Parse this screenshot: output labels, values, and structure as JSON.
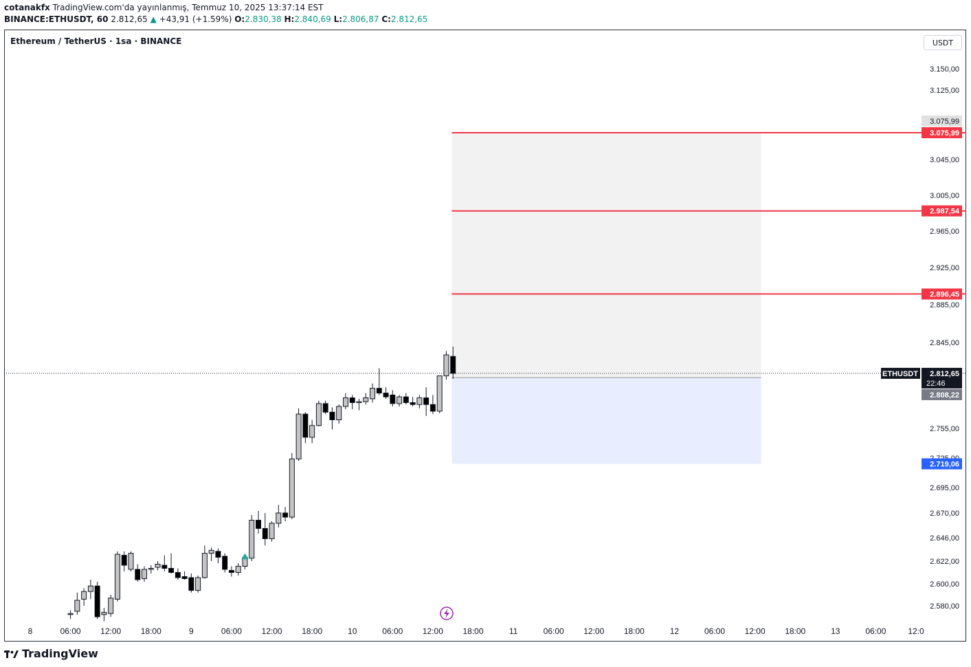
{
  "header": {
    "author": "cotanakfx",
    "published_text": "TradingView.com'da yayınlanmış, Temmuz 10, 2025 13:37:14 EST",
    "symbol": "BINANCE:ETHUSDT, 60",
    "last": "2.812,65",
    "change": "+43,91 (+1.59%)",
    "o_label": "O:",
    "o": "2.830,38",
    "h_label": "H:",
    "h": "2.840,69",
    "l_label": "L:",
    "l": "2.806,87",
    "c_label": "C:",
    "c": "2.812,65"
  },
  "legend_title": "Ethereum / TetherUS · 1sa · BINANCE",
  "currency_button": "USDT",
  "footer": {
    "brand": "TradingView"
  },
  "colors": {
    "bull_body": "#c4c4c4",
    "bear_body": "#000000",
    "target_line": "#f23645",
    "entry_label": "#2962ff",
    "marker": "#26a69a",
    "flash_icon": "#9c27b0"
  },
  "chart_data": {
    "type": "candlestick",
    "title": "Ethereum / TetherUS · 1sa · BINANCE",
    "series_name": "ETHUSDT",
    "y_axis_labels": [
      "3.150,00",
      "3.125,00",
      "3.075,99",
      "3.045,00",
      "3.005,00",
      "2.965,00",
      "2.925,00",
      "2.885,00",
      "2.845,00",
      "2.755,00",
      "2.725,00",
      "2.695,00",
      "2.670,00",
      "2.646,00",
      "2.622,00",
      "2.600,00",
      "2.580,00"
    ],
    "y_ticks": [
      3150,
      3125,
      3075.99,
      3045,
      3005,
      2965,
      2925,
      2885,
      2845,
      2755,
      2725,
      2695,
      2670,
      2646,
      2622,
      2600,
      2580
    ],
    "x_axis_labels": [
      "8",
      "06:00",
      "12:00",
      "18:00",
      "9",
      "06:00",
      "12:00",
      "18:00",
      "10",
      "06:00",
      "12:00",
      "18:00",
      "11",
      "06:00",
      "12:00",
      "18:00",
      "12",
      "06:00",
      "12:00",
      "18:00",
      "13",
      "06:00",
      "12:0"
    ],
    "x_hours": [
      0,
      6,
      12,
      18,
      24,
      30,
      36,
      42,
      48,
      54,
      60,
      66,
      72,
      78,
      84,
      90,
      96,
      102,
      108,
      114,
      120,
      126,
      132
    ],
    "candles": [
      {
        "t": 6,
        "o": 2572,
        "h": 2576,
        "l": 2568,
        "c": 2573
      },
      {
        "t": 7,
        "o": 2575,
        "h": 2592,
        "l": 2572,
        "c": 2585
      },
      {
        "t": 8,
        "o": 2586,
        "h": 2596,
        "l": 2580,
        "c": 2593
      },
      {
        "t": 9,
        "o": 2593,
        "h": 2604,
        "l": 2586,
        "c": 2598
      },
      {
        "t": 10,
        "o": 2598,
        "h": 2602,
        "l": 2568,
        "c": 2570
      },
      {
        "t": 11,
        "o": 2572,
        "h": 2578,
        "l": 2566,
        "c": 2574
      },
      {
        "t": 12,
        "o": 2573,
        "h": 2590,
        "l": 2570,
        "c": 2587
      },
      {
        "t": 13,
        "o": 2586,
        "h": 2632,
        "l": 2584,
        "c": 2629
      },
      {
        "t": 14,
        "o": 2628,
        "h": 2632,
        "l": 2612,
        "c": 2618
      },
      {
        "t": 15,
        "o": 2614,
        "h": 2632,
        "l": 2612,
        "c": 2630
      },
      {
        "t": 16,
        "o": 2614,
        "h": 2619,
        "l": 2602,
        "c": 2604
      },
      {
        "t": 17,
        "o": 2605,
        "h": 2617,
        "l": 2602,
        "c": 2614
      },
      {
        "t": 18,
        "o": 2614,
        "h": 2618,
        "l": 2610,
        "c": 2615
      },
      {
        "t": 19,
        "o": 2616,
        "h": 2622,
        "l": 2613,
        "c": 2619
      },
      {
        "t": 20,
        "o": 2618,
        "h": 2628,
        "l": 2612,
        "c": 2615
      },
      {
        "t": 21,
        "o": 2615,
        "h": 2630,
        "l": 2610,
        "c": 2611
      },
      {
        "t": 22,
        "o": 2611,
        "h": 2615,
        "l": 2604,
        "c": 2606
      },
      {
        "t": 23,
        "o": 2607,
        "h": 2612,
        "l": 2604,
        "c": 2605
      },
      {
        "t": 24,
        "o": 2606,
        "h": 2610,
        "l": 2592,
        "c": 2594
      },
      {
        "t": 25,
        "o": 2594,
        "h": 2608,
        "l": 2592,
        "c": 2606
      },
      {
        "t": 26,
        "o": 2606,
        "h": 2638,
        "l": 2605,
        "c": 2630
      },
      {
        "t": 27,
        "o": 2630,
        "h": 2636,
        "l": 2622,
        "c": 2633
      },
      {
        "t": 28,
        "o": 2632,
        "h": 2635,
        "l": 2620,
        "c": 2626
      },
      {
        "t": 29,
        "o": 2627,
        "h": 2630,
        "l": 2611,
        "c": 2614
      },
      {
        "t": 30,
        "o": 2613,
        "h": 2617,
        "l": 2607,
        "c": 2611
      },
      {
        "t": 31,
        "o": 2611,
        "h": 2620,
        "l": 2608,
        "c": 2617
      },
      {
        "t": 32,
        "o": 2617,
        "h": 2628,
        "l": 2614,
        "c": 2626
      },
      {
        "t": 33,
        "o": 2625,
        "h": 2668,
        "l": 2622,
        "c": 2663
      },
      {
        "t": 34,
        "o": 2663,
        "h": 2672,
        "l": 2650,
        "c": 2655
      },
      {
        "t": 35,
        "o": 2655,
        "h": 2670,
        "l": 2638,
        "c": 2645
      },
      {
        "t": 36,
        "o": 2645,
        "h": 2662,
        "l": 2642,
        "c": 2660
      },
      {
        "t": 37,
        "o": 2660,
        "h": 2678,
        "l": 2656,
        "c": 2670
      },
      {
        "t": 38,
        "o": 2670,
        "h": 2676,
        "l": 2662,
        "c": 2666
      },
      {
        "t": 39,
        "o": 2666,
        "h": 2730,
        "l": 2664,
        "c": 2724
      },
      {
        "t": 40,
        "o": 2724,
        "h": 2776,
        "l": 2722,
        "c": 2770
      },
      {
        "t": 41,
        "o": 2770,
        "h": 2772,
        "l": 2740,
        "c": 2746
      },
      {
        "t": 42,
        "o": 2746,
        "h": 2764,
        "l": 2740,
        "c": 2758
      },
      {
        "t": 43,
        "o": 2758,
        "h": 2784,
        "l": 2757,
        "c": 2781
      },
      {
        "t": 44,
        "o": 2781,
        "h": 2784,
        "l": 2770,
        "c": 2772
      },
      {
        "t": 45,
        "o": 2772,
        "h": 2777,
        "l": 2754,
        "c": 2764
      },
      {
        "t": 46,
        "o": 2764,
        "h": 2780,
        "l": 2760,
        "c": 2778
      },
      {
        "t": 47,
        "o": 2778,
        "h": 2792,
        "l": 2775,
        "c": 2787
      },
      {
        "t": 48,
        "o": 2787,
        "h": 2790,
        "l": 2775,
        "c": 2782
      },
      {
        "t": 49,
        "o": 2782,
        "h": 2786,
        "l": 2774,
        "c": 2783
      },
      {
        "t": 50,
        "o": 2783,
        "h": 2792,
        "l": 2780,
        "c": 2787
      },
      {
        "t": 51,
        "o": 2786,
        "h": 2802,
        "l": 2782,
        "c": 2797
      },
      {
        "t": 52,
        "o": 2797,
        "h": 2818,
        "l": 2790,
        "c": 2792
      },
      {
        "t": 53,
        "o": 2792,
        "h": 2798,
        "l": 2786,
        "c": 2788
      },
      {
        "t": 54,
        "o": 2790,
        "h": 2795,
        "l": 2778,
        "c": 2781
      },
      {
        "t": 55,
        "o": 2781,
        "h": 2790,
        "l": 2778,
        "c": 2788
      },
      {
        "t": 56,
        "o": 2788,
        "h": 2792,
        "l": 2780,
        "c": 2782
      },
      {
        "t": 57,
        "o": 2782,
        "h": 2788,
        "l": 2778,
        "c": 2780
      },
      {
        "t": 58,
        "o": 2780,
        "h": 2790,
        "l": 2776,
        "c": 2787
      },
      {
        "t": 59,
        "o": 2787,
        "h": 2798,
        "l": 2768,
        "c": 2780
      },
      {
        "t": 60,
        "o": 2780,
        "h": 2790,
        "l": 2770,
        "c": 2773
      },
      {
        "t": 61,
        "o": 2773,
        "h": 2810,
        "l": 2771,
        "c": 2810
      },
      {
        "t": 62,
        "o": 2810,
        "h": 2836,
        "l": 2806,
        "c": 2832
      },
      {
        "t": 63,
        "o": 2830.38,
        "h": 2840.69,
        "l": 2806.87,
        "c": 2812.65
      }
    ],
    "last_price": 2812.65,
    "countdown": "22:46",
    "position_entry": 2808.22,
    "position_stop": 2719.06,
    "targets": [
      2896.45,
      2987.54,
      3075.99
    ],
    "target_labels": [
      "2.896,45",
      "2.987,54",
      "3.075,99"
    ],
    "last_price_label": "2.812,65",
    "entry_label": "2.808,22",
    "stop_label": "2.719,06",
    "top_box_label": "3.075,99",
    "position_end_hour": 108,
    "grid": false,
    "ylim": [
      2566,
      3170
    ]
  }
}
